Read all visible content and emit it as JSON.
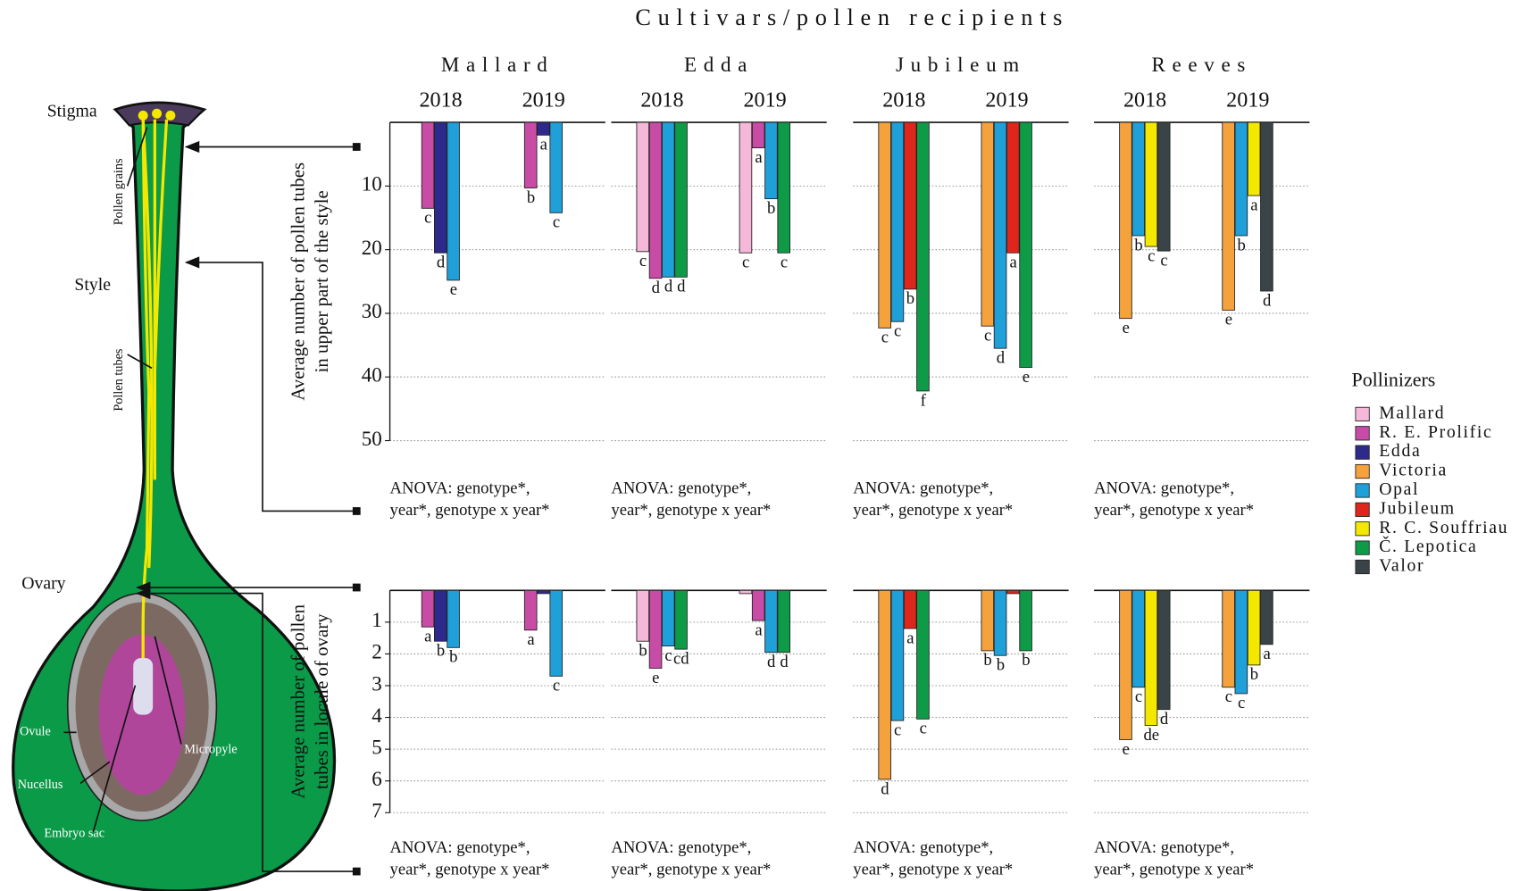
{
  "chart_data": {
    "type": "bar",
    "title": "Cultivars/pollen recipients",
    "groups": [
      {
        "cultivar": "Mallard",
        "years": [
          "2018",
          "2019"
        ]
      },
      {
        "cultivar": "Edda",
        "years": [
          "2018",
          "2019"
        ]
      },
      {
        "cultivar": "Jubileum",
        "years": [
          "2018",
          "2019"
        ]
      },
      {
        "cultivar": "Reeves",
        "years": [
          "2018",
          "2019"
        ]
      }
    ],
    "legend": {
      "title": "Pollinizers"
    },
    "series": [
      {
        "name": "Mallard",
        "color": "#f6b8d8"
      },
      {
        "name": "R. E. Prolific",
        "color": "#c84ca6"
      },
      {
        "name": "Edda",
        "color": "#2e2a8c"
      },
      {
        "name": "Victoria",
        "color": "#f6a23c"
      },
      {
        "name": "Opal",
        "color": "#1fa0d8"
      },
      {
        "name": "Jubileum",
        "color": "#e0261c"
      },
      {
        "name": "R. C. Souffriau",
        "color": "#f5e800"
      },
      {
        "name": "Č. Lepotica",
        "color": "#0f9a48"
      },
      {
        "name": "Valor",
        "color": "#3a4448"
      }
    ],
    "panels": [
      {
        "ylabel": [
          "Average number of pollen tubes",
          "in upper part of the style"
        ],
        "ylim": [
          0,
          50
        ],
        "yticks": [
          10,
          20,
          30,
          40,
          50
        ],
        "grid": true,
        "anova": [
          [
            "ANOVA: genotype*,",
            "year*, genotype x year*"
          ],
          [
            "ANOVA: genotype*,",
            "year*, genotype x year*"
          ],
          [
            "ANOVA: genotype*,",
            "year*, genotype x year*"
          ],
          [
            "ANOVA: genotype*,",
            "year*, genotype x year*"
          ]
        ],
        "series": [
          {
            "values": [
              null,
              null,
              20.3,
              20.5,
              null,
              null,
              null,
              null
            ],
            "value_labels": [
              null,
              null,
              "c",
              "c",
              null,
              null,
              null,
              null
            ]
          },
          {
            "values": [
              13.5,
              10.3,
              24.5,
              4,
              null,
              null,
              null,
              null
            ],
            "value_labels": [
              "c",
              "b",
              "d",
              "a",
              null,
              null,
              null,
              null
            ]
          },
          {
            "values": [
              20.5,
              2,
              null,
              null,
              null,
              null,
              null,
              null
            ],
            "value_labels": [
              "d",
              "a",
              null,
              null,
              null,
              null,
              null,
              null
            ]
          },
          {
            "values": [
              null,
              null,
              null,
              null,
              32.3,
              32,
              30.8,
              29.5
            ],
            "value_labels": [
              null,
              null,
              null,
              null,
              "c",
              "c",
              "e",
              "e"
            ]
          },
          {
            "values": [
              24.8,
              14.2,
              24.3,
              12,
              31.3,
              35.5,
              17.8,
              17.8
            ],
            "value_labels": [
              "e",
              "c",
              "d",
              "b",
              "c",
              "d",
              "b",
              "b"
            ]
          },
          {
            "values": [
              null,
              null,
              null,
              null,
              26.2,
              20.5,
              null,
              null
            ],
            "value_labels": [
              null,
              null,
              null,
              null,
              "b",
              "a",
              null,
              null
            ]
          },
          {
            "values": [
              null,
              null,
              null,
              null,
              null,
              null,
              19.5,
              11.5
            ],
            "value_labels": [
              null,
              null,
              null,
              null,
              null,
              null,
              "c",
              "a"
            ]
          },
          {
            "values": [
              null,
              null,
              24.3,
              20.5,
              42.2,
              38.5,
              null,
              null
            ],
            "value_labels": [
              null,
              null,
              "d",
              "c",
              "f",
              "e",
              null,
              null
            ]
          },
          {
            "values": [
              null,
              null,
              null,
              null,
              null,
              null,
              20.2,
              26.5
            ],
            "value_labels": [
              null,
              null,
              null,
              null,
              null,
              null,
              "c",
              "d"
            ]
          }
        ]
      },
      {
        "ylabel": [
          "Average number of pollen",
          "tubes in locule of ovary"
        ],
        "ylim": [
          0,
          7
        ],
        "yticks": [
          1,
          2,
          3,
          4,
          5,
          6,
          7
        ],
        "grid": true,
        "anova": [
          [
            "ANOVA: genotype*,",
            "year*, genotype x year*"
          ],
          [
            "ANOVA: genotype*,",
            "year*, genotype x year*"
          ],
          [
            "ANOVA: genotype*,",
            "year*, genotype x year*"
          ],
          [
            "ANOVA: genotype*,",
            "year*, genotype x year*"
          ]
        ],
        "series": [
          {
            "values": [
              null,
              null,
              1.6,
              0.1,
              null,
              null,
              null,
              null
            ],
            "value_labels": [
              null,
              null,
              "b",
              null,
              null,
              null,
              null,
              null
            ]
          },
          {
            "values": [
              1.15,
              1.25,
              2.45,
              0.95,
              null,
              null,
              null,
              null
            ],
            "value_labels": [
              "a",
              "a",
              "e",
              "a",
              null,
              null,
              null,
              null
            ]
          },
          {
            "values": [
              1.6,
              0.1,
              null,
              null,
              null,
              null,
              null,
              null
            ],
            "value_labels": [
              "b",
              null,
              null,
              null,
              null,
              null,
              null,
              null
            ]
          },
          {
            "values": [
              null,
              null,
              null,
              null,
              5.95,
              1.9,
              4.7,
              3.05
            ],
            "value_labels": [
              null,
              null,
              null,
              null,
              "d",
              "b",
              "e",
              "c"
            ]
          },
          {
            "values": [
              1.8,
              2.7,
              1.75,
              1.95,
              4.1,
              2.05,
              3.05,
              3.25
            ],
            "value_labels": [
              "b",
              "c",
              "c",
              "d",
              "c",
              "b",
              "c",
              "c"
            ]
          },
          {
            "values": [
              null,
              null,
              null,
              null,
              1.2,
              0.1,
              null,
              null
            ],
            "value_labels": [
              null,
              null,
              null,
              null,
              "a",
              null,
              null,
              null
            ]
          },
          {
            "values": [
              null,
              null,
              null,
              null,
              null,
              null,
              4.25,
              2.35
            ],
            "value_labels": [
              null,
              null,
              null,
              null,
              null,
              null,
              "de",
              "b"
            ]
          },
          {
            "values": [
              null,
              null,
              1.85,
              1.95,
              4.05,
              1.9,
              null,
              null
            ],
            "value_labels": [
              null,
              null,
              "cd",
              "d",
              "c",
              "b",
              null,
              null
            ]
          },
          {
            "values": [
              null,
              null,
              null,
              null,
              null,
              null,
              3.75,
              1.7
            ],
            "value_labels": [
              null,
              null,
              null,
              null,
              null,
              null,
              "d",
              "a"
            ]
          }
        ]
      }
    ]
  },
  "diagram": {
    "stigma": "Stigma",
    "pollen_grains": "Pollen grains",
    "style": "Style",
    "pollen_tubes": "Pollen tubes",
    "ovary": "Ovary",
    "ovule": "Ovule",
    "nucellus": "Nucellus",
    "embryo_sac": "Embryo sac",
    "micropyle": "Micropyle"
  }
}
